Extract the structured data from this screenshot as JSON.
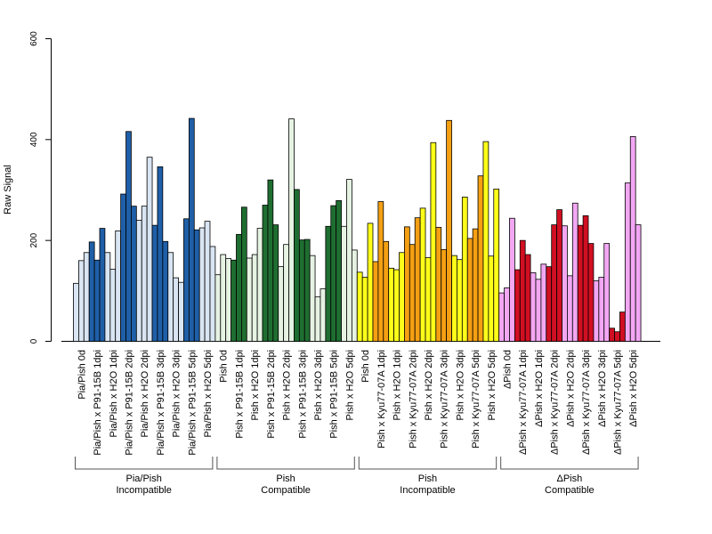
{
  "chart_data": {
    "type": "bar",
    "title": "",
    "ylabel": "Raw Signal",
    "xlabel": "",
    "ylim": [
      0,
      600
    ],
    "yticks": [
      0,
      200,
      400,
      600
    ],
    "grid": false,
    "categories": [
      "Pia/Pish 0d",
      "Pia/Pish x P91-15B 1dpi",
      "Pia/Pish x H2O 1dpi",
      "Pia/Pish x P91-15B 2dpi",
      "Pia/Pish x H2O 2dpi",
      "Pia/Pish x P91-15B 3dpi",
      "Pia/Pish x H2O 3dpi",
      "Pia/Pish x P91-15B 5dpi",
      "Pia/Pish x H2O 5dpi",
      "Pish 0d",
      "Pish x P91-15B 1dpi",
      "Pish x H2O 1dpi",
      "Pish x P91-15B 2dpi",
      "Pish x H2O 2dpi",
      "Pish x P91-15B 3dpi",
      "Pish x H2O 3dpi",
      "Pish x P91-15B 5dpi",
      "Pish x H2O 5dpi",
      "Pish 0d",
      "Pish x Kyu77-07A 1dpi",
      "Pish x H2O 1dpi",
      "Pish x Kyu77-07A 2dpi",
      "Pish x H2O 2dpi",
      "Pish x Kyu77-07A 3dpi",
      "Pish x H2O 3dpi",
      "Pish x Kyu77-07A 5dpi",
      "Pish x H2O 5dpi",
      "ΔPish 0d",
      "ΔPish x Kyu77-07A 1dpi",
      "ΔPish x H2O 1dpi",
      "ΔPish x Kyu77-07A 2dpi",
      "ΔPish x H2O 2dpi",
      "ΔPish x Kyu77-07A 3dpi",
      "ΔPish x H2O 3dpi",
      "ΔPish x Kyu77-07A 5dpi",
      "ΔPish x H2O 5dpi"
    ],
    "replicates": 3,
    "values": [
      [
        115,
        160,
        176
      ],
      [
        197,
        161,
        224
      ],
      [
        176,
        143,
        219
      ],
      [
        292,
        416,
        268
      ],
      [
        240,
        268,
        365
      ],
      [
        230,
        346,
        198
      ],
      [
        176,
        126,
        117
      ],
      [
        243,
        442,
        221
      ],
      [
        225,
        238,
        188
      ],
      [
        132,
        172,
        164
      ],
      [
        161,
        212,
        266
      ],
      [
        165,
        172,
        224
      ],
      [
        270,
        320,
        231
      ],
      [
        148,
        192,
        441
      ],
      [
        301,
        201,
        202
      ],
      [
        170,
        88,
        104
      ],
      [
        228,
        269,
        279
      ],
      [
        228,
        321,
        181
      ],
      [
        137,
        127,
        234
      ],
      [
        158,
        277,
        198
      ],
      [
        145,
        142,
        176
      ],
      [
        227,
        192,
        245
      ],
      [
        264,
        166,
        394
      ],
      [
        226,
        182,
        438
      ],
      [
        170,
        162,
        286
      ],
      [
        204,
        223,
        328
      ],
      [
        396,
        169,
        302
      ],
      [
        96,
        106,
        244
      ],
      [
        142,
        200,
        172
      ],
      [
        136,
        123,
        153
      ],
      [
        148,
        231,
        261
      ],
      [
        229,
        130,
        274
      ],
      [
        230,
        249,
        194
      ],
      [
        120,
        127,
        194
      ],
      [
        26,
        19,
        58
      ],
      [
        314,
        406,
        231
      ]
    ],
    "colors": [
      "#d9e5f2",
      "#1f5fa8",
      "#d9e5f2",
      "#1f5fa8",
      "#d9e5f2",
      "#1f5fa8",
      "#d9e5f2",
      "#1f5fa8",
      "#d9e5f2",
      "#e6f3e3",
      "#1f6e31",
      "#e6f3e3",
      "#1f6e31",
      "#e6f3e3",
      "#1f6e31",
      "#e6f3e3",
      "#1f6e31",
      "#e6f3e3",
      "#ffff1a",
      "#f5a013",
      "#ffff1a",
      "#f5a013",
      "#ffff1a",
      "#f5a013",
      "#ffff1a",
      "#f5a013",
      "#ffff1a",
      "#f3a7f3",
      "#d10f22",
      "#f3a7f3",
      "#d10f22",
      "#f3a7f3",
      "#d10f22",
      "#f3a7f3",
      "#d10f22",
      "#f3a7f3"
    ],
    "groups": [
      {
        "line1": "Pia/Pish",
        "line2": "Incompatible",
        "categories": 9
      },
      {
        "line1": "Pish",
        "line2": "Compatible",
        "categories": 9
      },
      {
        "line1": "Pish",
        "line2": "Incompatible",
        "categories": 9
      },
      {
        "line1": "ΔPish",
        "line2": "Compatible",
        "categories": 9
      }
    ]
  }
}
